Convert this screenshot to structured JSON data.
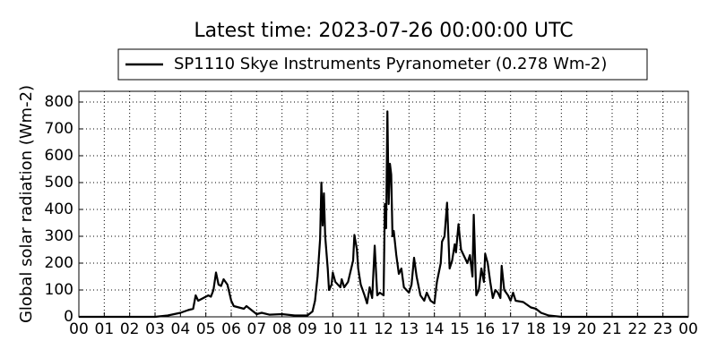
{
  "chart_data": {
    "type": "line",
    "title": "Latest time: 2023-07-26 00:00:00 UTC",
    "ylabel": "Global solar radiation (Wm-2)",
    "x": [
      0,
      3,
      3.5,
      4,
      4.3,
      4.5,
      4.6,
      4.7,
      4.9,
      5.1,
      5.2,
      5.3,
      5.4,
      5.5,
      5.6,
      5.7,
      5.85,
      6,
      6.1,
      6.3,
      6.5,
      6.6,
      6.8,
      7,
      7.2,
      7.5,
      8,
      8.5,
      9,
      9.2,
      9.3,
      9.4,
      9.5,
      9.55,
      9.6,
      9.65,
      9.7,
      9.8,
      9.85,
      9.95,
      10,
      10.1,
      10.2,
      10.3,
      10.35,
      10.45,
      10.6,
      10.8,
      10.85,
      10.95,
      11,
      11.1,
      11.25,
      11.35,
      11.45,
      11.55,
      11.65,
      11.75,
      11.85,
      12,
      12.05,
      12.1,
      12.15,
      12.2,
      12.25,
      12.3,
      12.35,
      12.4,
      12.5,
      12.6,
      12.7,
      12.8,
      13,
      13.1,
      13.2,
      13.3,
      13.45,
      13.6,
      13.7,
      13.85,
      14,
      14.1,
      14.25,
      14.3,
      14.4,
      14.5,
      14.6,
      14.7,
      14.8,
      14.85,
      14.95,
      15.05,
      15.2,
      15.3,
      15.4,
      15.5,
      15.55,
      15.65,
      15.75,
      15.85,
      15.95,
      16,
      16.1,
      16.2,
      16.3,
      16.4,
      16.5,
      16.6,
      16.65,
      16.75,
      16.9,
      17,
      17.1,
      17.2,
      17.5,
      17.8,
      18,
      18.2,
      18.5,
      19,
      24
    ],
    "series": [
      {
        "name": "SP1110 Skye Instruments Pyranometer (0.278 Wm-2)",
        "color": "#000000",
        "values": [
          0,
          0,
          5,
          15,
          25,
          30,
          80,
          60,
          70,
          80,
          75,
          100,
          165,
          120,
          115,
          140,
          120,
          60,
          40,
          35,
          30,
          40,
          25,
          10,
          15,
          8,
          10,
          5,
          5,
          20,
          60,
          150,
          290,
          500,
          340,
          460,
          300,
          180,
          100,
          120,
          165,
          130,
          120,
          110,
          140,
          110,
          130,
          210,
          305,
          250,
          180,
          120,
          80,
          50,
          110,
          70,
          265,
          80,
          90,
          80,
          420,
          330,
          765,
          420,
          570,
          530,
          300,
          320,
          230,
          160,
          180,
          110,
          90,
          120,
          220,
          150,
          80,
          60,
          90,
          60,
          50,
          130,
          200,
          280,
          300,
          425,
          180,
          210,
          270,
          240,
          345,
          250,
          220,
          200,
          230,
          150,
          380,
          80,
          100,
          180,
          130,
          235,
          200,
          130,
          70,
          100,
          90,
          70,
          190,
          100,
          80,
          60,
          90,
          60,
          55,
          35,
          30,
          15,
          5,
          0,
          0
        ]
      }
    ],
    "xlim": [
      0,
      24
    ],
    "xticks": [
      {
        "value": 0,
        "label": "00"
      },
      {
        "value": 1,
        "label": "01"
      },
      {
        "value": 2,
        "label": "02"
      },
      {
        "value": 3,
        "label": "03"
      },
      {
        "value": 4,
        "label": "04"
      },
      {
        "value": 5,
        "label": "05"
      },
      {
        "value": 6,
        "label": "06"
      },
      {
        "value": 7,
        "label": "07"
      },
      {
        "value": 8,
        "label": "08"
      },
      {
        "value": 9,
        "label": "09"
      },
      10,
      11,
      12,
      13,
      14,
      15,
      16,
      17,
      18,
      19,
      20,
      21,
      22,
      23,
      {
        "value": 24,
        "label": "00"
      }
    ],
    "ylim": [
      0,
      840
    ],
    "yticks": [
      0,
      100,
      200,
      300,
      400,
      500,
      600,
      700,
      800
    ],
    "grid": true,
    "legend": "top"
  }
}
